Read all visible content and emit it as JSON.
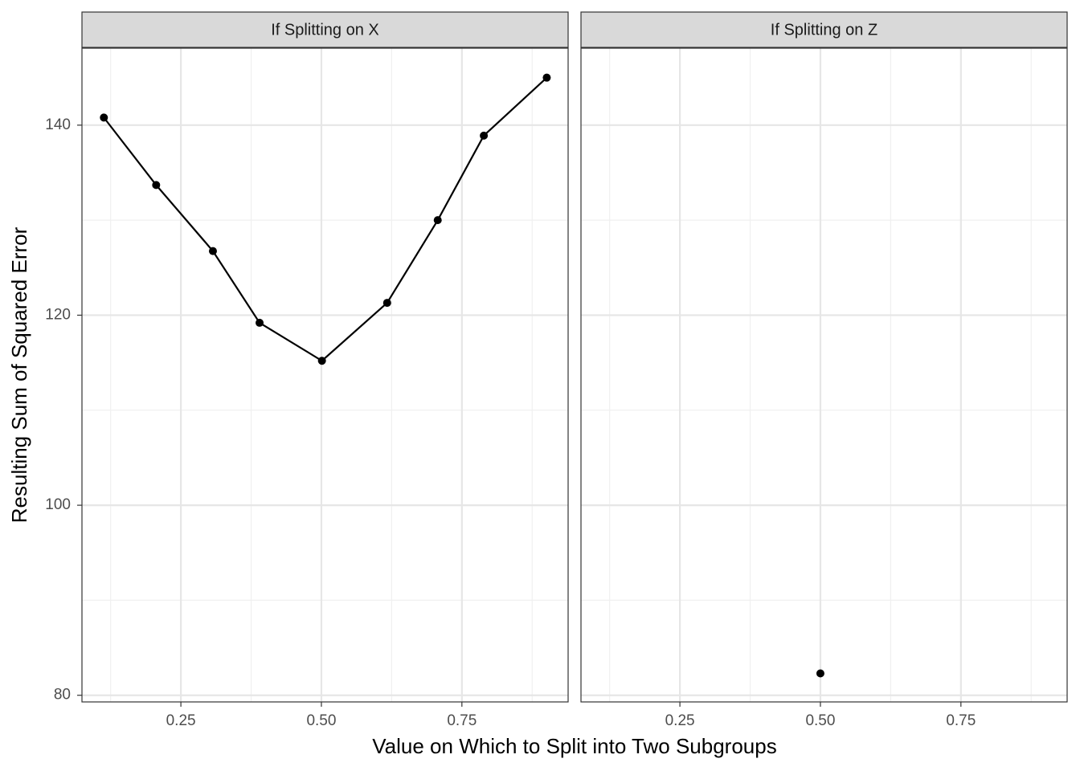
{
  "chart_data": {
    "type": "line",
    "x_label": "Value on Which to Split into Two Subgroups",
    "y_label": "Resulting Sum of Squared Error",
    "xlim": [
      0.074,
      0.939
    ],
    "ylim": [
      79.3,
      148.1
    ],
    "xticks": [
      0.25,
      {
        "value": 0.5,
        "label": "0.50"
      },
      0.75
    ],
    "yticks": [
      80,
      100,
      120,
      140
    ],
    "x_minor_ticks": [
      0.125,
      0.375,
      0.625,
      0.875
    ],
    "y_minor_ticks": [
      90,
      110,
      130
    ],
    "grid": true,
    "color": "#000000",
    "facets": [
      {
        "title": "If Splitting on X",
        "type": "line",
        "x": [
          0.113,
          0.206,
          0.307,
          0.39,
          0.501,
          0.617,
          0.707,
          0.789,
          0.901
        ],
        "values": [
          140.8,
          133.7,
          126.75,
          119.2,
          115.2,
          121.3,
          130.0,
          138.9,
          145.0
        ]
      },
      {
        "title": "If Splitting on Z",
        "type": "scatter",
        "x": [
          0.5
        ],
        "values": [
          82.3
        ]
      }
    ]
  }
}
